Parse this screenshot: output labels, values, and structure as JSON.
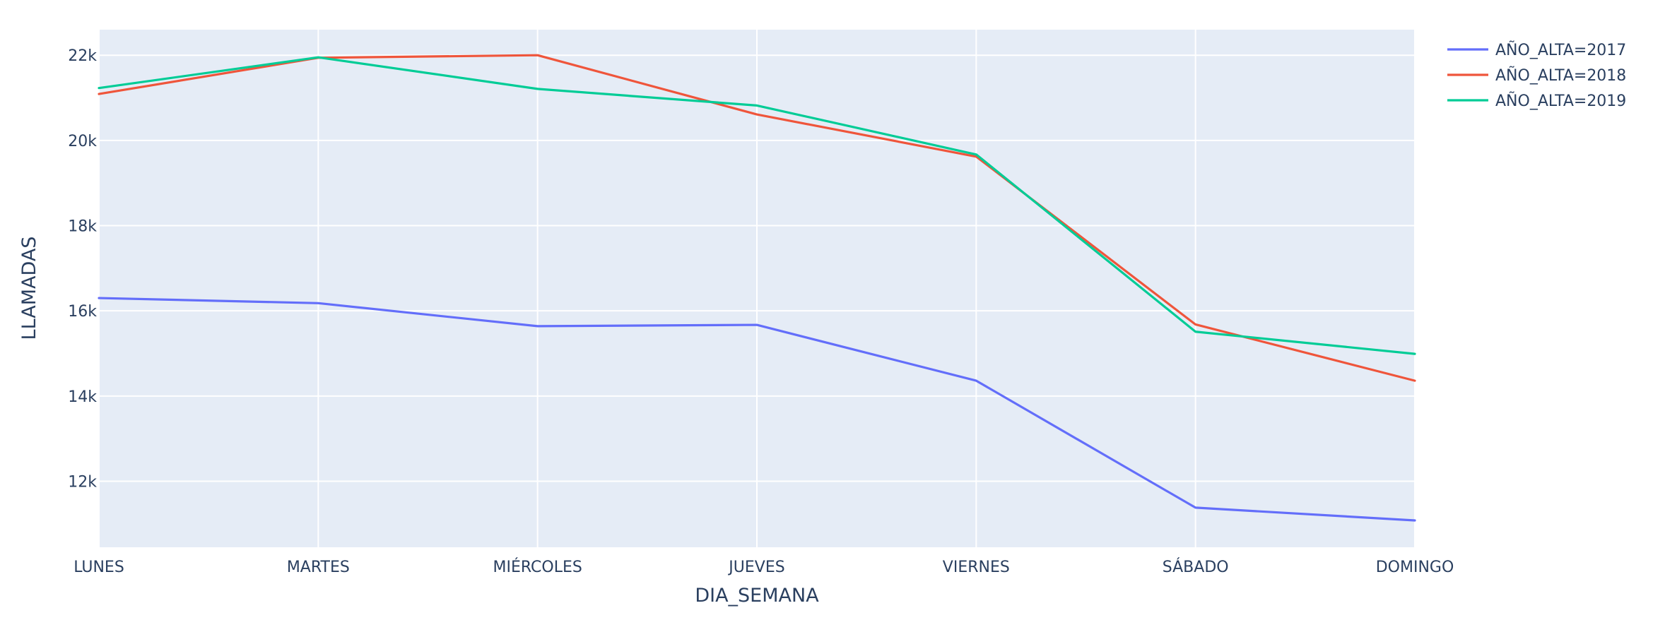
{
  "chart_data": {
    "type": "line",
    "title": "",
    "xlabel": "DIA_SEMANA",
    "ylabel": "LLAMADAS",
    "categories": [
      "LUNES",
      "MARTES",
      "MIÉRCOLES",
      "JUEVES",
      "VIERNES",
      "SÁBADO",
      "DOMINGO"
    ],
    "ylim": [
      10450,
      22600
    ],
    "yticks": [
      12000,
      14000,
      16000,
      18000,
      20000,
      22000
    ],
    "ytick_labels": [
      "12k",
      "14k",
      "16k",
      "18k",
      "20k",
      "22k"
    ],
    "grid": true,
    "legend_position": "top-right",
    "plot_background": "#e5ecf6",
    "series": [
      {
        "name": "AÑO_ALTA=2017",
        "color": "#636efa",
        "values": [
          16300,
          16180,
          15640,
          15670,
          14360,
          11380,
          11080
        ]
      },
      {
        "name": "AÑO_ALTA=2018",
        "color": "#ef553b",
        "values": [
          21090,
          21940,
          22000,
          20610,
          19620,
          15680,
          14360
        ]
      },
      {
        "name": "AÑO_ALTA=2019",
        "color": "#00cc96",
        "values": [
          21230,
          21950,
          21210,
          20820,
          19670,
          15510,
          14990
        ]
      }
    ]
  }
}
